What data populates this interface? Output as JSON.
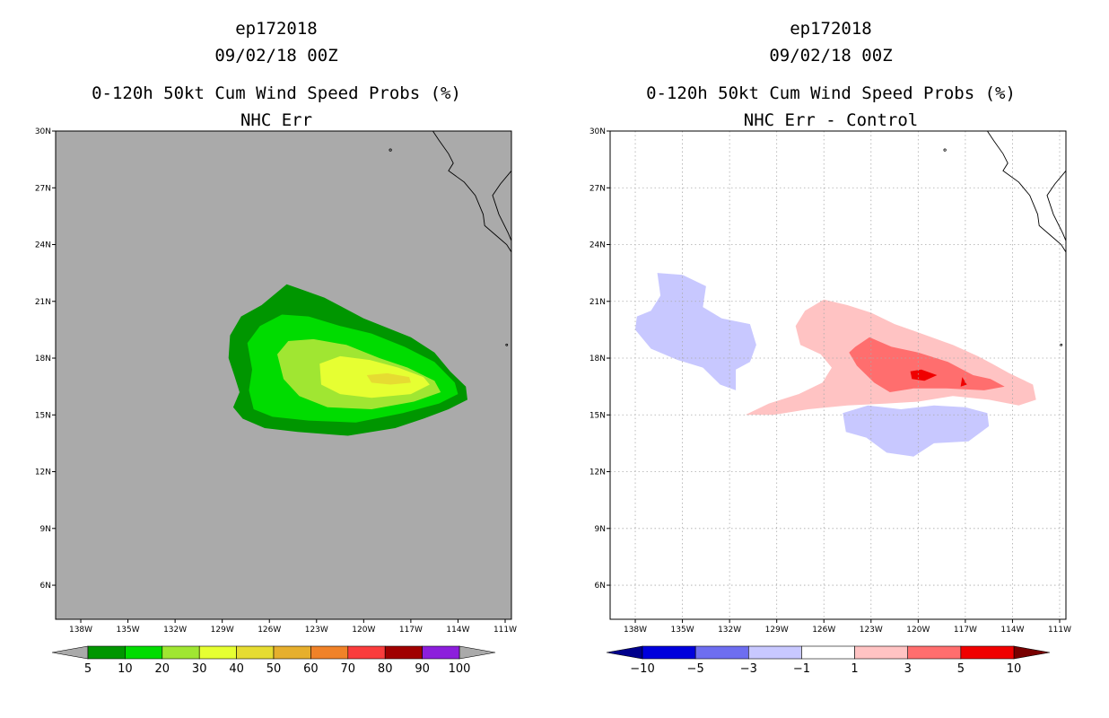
{
  "chart_data": [
    {
      "type": "heatmap",
      "title_lines": [
        "ep172018",
        "09/02/18 00Z",
        "0-120h 50kt Cum Wind Speed Probs (%)",
        "NHC Err"
      ],
      "xlabel": "",
      "ylabel": "",
      "x_ticks": [
        "138W",
        "135W",
        "132W",
        "129W",
        "126W",
        "123W",
        "120W",
        "117W",
        "114W",
        "111W"
      ],
      "y_ticks": [
        "30N",
        "27N",
        "24N",
        "21N",
        "18N",
        "15N",
        "12N",
        "9N",
        "6N"
      ],
      "xlim": [
        -139.6,
        -110.6
      ],
      "ylim": [
        4.2,
        30.0
      ],
      "grid": false,
      "background_color": "#aaaaaa",
      "colorbar": {
        "labels": [
          "5",
          "10",
          "20",
          "30",
          "40",
          "50",
          "60",
          "70",
          "80",
          "90",
          "100"
        ],
        "colors": [
          "#009600",
          "#00dc00",
          "#a0e632",
          "#e6ff32",
          "#e6dc32",
          "#e6af2d",
          "#f08228",
          "#fa3c3c",
          "#a00000",
          "#8c1edc"
        ],
        "under_color": "#aaaaaa",
        "over_color": "#aaaaaa"
      },
      "regions": [
        {
          "level": "5-10",
          "color": "#009600",
          "points": [
            [
              -128.5,
              19.2
            ],
            [
              -127.8,
              20.2
            ],
            [
              -126.5,
              20.8
            ],
            [
              -124.9,
              21.9
            ],
            [
              -124.2,
              21.7
            ],
            [
              -122.5,
              21.2
            ],
            [
              -120,
              20.1
            ],
            [
              -117,
              19.1
            ],
            [
              -115.5,
              18.3
            ],
            [
              -114.5,
              17.3
            ],
            [
              -113.5,
              16.5
            ],
            [
              -113.4,
              15.8
            ],
            [
              -114.6,
              15.3
            ],
            [
              -116.2,
              14.8
            ],
            [
              -118,
              14.3
            ],
            [
              -121,
              13.9
            ],
            [
              -124.2,
              14.1
            ],
            [
              -126.3,
              14.3
            ],
            [
              -127.7,
              14.8
            ],
            [
              -128.3,
              15.4
            ],
            [
              -127.9,
              16.2
            ],
            [
              -128.2,
              17
            ],
            [
              -128.6,
              18
            ]
          ]
        },
        {
          "level": "10-20",
          "color": "#00dc00",
          "points": [
            [
              -127.4,
              18.8
            ],
            [
              -126.6,
              19.7
            ],
            [
              -125.2,
              20.3
            ],
            [
              -123.5,
              20.2
            ],
            [
              -121.5,
              19.7
            ],
            [
              -119.5,
              19.3
            ],
            [
              -117.4,
              18.6
            ],
            [
              -115.5,
              17.8
            ],
            [
              -114.2,
              16.7
            ],
            [
              -114,
              16.1
            ],
            [
              -115.2,
              15.6
            ],
            [
              -117.5,
              15.1
            ],
            [
              -120.5,
              14.6
            ],
            [
              -123.5,
              14.7
            ],
            [
              -125.8,
              14.9
            ],
            [
              -127,
              15.3
            ],
            [
              -127.3,
              16.3
            ],
            [
              -127.1,
              17.4
            ]
          ]
        },
        {
          "level": "20-30",
          "color": "#a0e632",
          "points": [
            [
              -125.5,
              18.2
            ],
            [
              -124.8,
              18.9
            ],
            [
              -123.2,
              19
            ],
            [
              -121.1,
              18.7
            ],
            [
              -119,
              18
            ],
            [
              -117.2,
              17.5
            ],
            [
              -115.5,
              16.8
            ],
            [
              -115.1,
              16.2
            ],
            [
              -116.8,
              15.7
            ],
            [
              -119.5,
              15.3
            ],
            [
              -122.3,
              15.4
            ],
            [
              -124.1,
              16
            ],
            [
              -125.1,
              16.9
            ]
          ]
        },
        {
          "level": "30-40",
          "color": "#e6ff32",
          "points": [
            [
              -122.8,
              17.7
            ],
            [
              -121.5,
              18.1
            ],
            [
              -119.6,
              17.9
            ],
            [
              -117.8,
              17.5
            ],
            [
              -116.2,
              17
            ],
            [
              -115.8,
              16.6
            ],
            [
              -117,
              16.1
            ],
            [
              -119.5,
              15.9
            ],
            [
              -121.5,
              16.1
            ],
            [
              -122.7,
              16.6
            ]
          ]
        },
        {
          "level": "40-50",
          "color": "#e6dc32",
          "points": [
            [
              -119.8,
              17.1
            ],
            [
              -118.5,
              17.2
            ],
            [
              -117.1,
              17
            ],
            [
              -117,
              16.7
            ],
            [
              -118.3,
              16.6
            ],
            [
              -119.5,
              16.7
            ]
          ]
        }
      ],
      "coastline": true
    },
    {
      "type": "heatmap",
      "title_lines": [
        "ep172018",
        "09/02/18 00Z",
        "0-120h 50kt Cum Wind Speed Probs (%)",
        "NHC Err - Control"
      ],
      "xlabel": "",
      "ylabel": "",
      "x_ticks": [
        "138W",
        "135W",
        "132W",
        "129W",
        "126W",
        "123W",
        "120W",
        "117W",
        "114W",
        "111W"
      ],
      "y_ticks": [
        "30N",
        "27N",
        "24N",
        "21N",
        "18N",
        "15N",
        "12N",
        "9N",
        "6N"
      ],
      "xlim": [
        -139.6,
        -110.6
      ],
      "ylim": [
        4.2,
        30.0
      ],
      "grid": true,
      "background_color": "#ffffff",
      "colorbar": {
        "labels": [
          "-10",
          "-5",
          "-3",
          "-1",
          "1",
          "3",
          "5",
          "10"
        ],
        "colors": [
          "#0000dc",
          "#6e6ef0",
          "#c8c8ff",
          "#ffffff",
          "#ffc3c3",
          "#ff6e6e",
          "#f00000"
        ],
        "under_color": "#00008c",
        "over_color": "#780000"
      },
      "regions": [
        {
          "level": "-3--1",
          "color": "#c8c8ff",
          "points": [
            [
              -136.6,
              22.5
            ],
            [
              -135,
              22.4
            ],
            [
              -133.5,
              21.8
            ],
            [
              -133.7,
              20.7
            ],
            [
              -132.5,
              20.1
            ],
            [
              -130.7,
              19.8
            ],
            [
              -130.3,
              18.7
            ],
            [
              -130.7,
              17.8
            ],
            [
              -131.6,
              17.4
            ],
            [
              -131.6,
              16.3
            ],
            [
              -132.6,
              16.6
            ],
            [
              -133.7,
              17.5
            ],
            [
              -135.3,
              17.9
            ],
            [
              -137,
              18.5
            ],
            [
              -138,
              19.5
            ],
            [
              -137.9,
              20.2
            ],
            [
              -137,
              20.5
            ],
            [
              -136.4,
              21.3
            ]
          ]
        },
        {
          "level": "-3--1",
          "color": "#c8c8ff",
          "points": [
            [
              -124.8,
              15.1
            ],
            [
              -123.2,
              15.5
            ],
            [
              -121.1,
              15.3
            ],
            [
              -119,
              15.5
            ],
            [
              -117,
              15.4
            ],
            [
              -115.6,
              15.1
            ],
            [
              -115.5,
              14.4
            ],
            [
              -116.8,
              13.6
            ],
            [
              -119,
              13.5
            ],
            [
              -120.3,
              12.8
            ],
            [
              -122,
              13
            ],
            [
              -123.3,
              13.8
            ],
            [
              -124.6,
              14.1
            ]
          ]
        },
        {
          "level": "1-3",
          "color": "#ffc3c3",
          "points": [
            [
              -127.2,
              20.5
            ],
            [
              -126,
              21.1
            ],
            [
              -124.5,
              20.8
            ],
            [
              -123,
              20.4
            ],
            [
              -121.5,
              19.8
            ],
            [
              -119.8,
              19.3
            ],
            [
              -117.8,
              18.7
            ],
            [
              -116.2,
              18.1
            ],
            [
              -115.3,
              17.7
            ],
            [
              -114.2,
              17.2
            ],
            [
              -112.7,
              16.6
            ],
            [
              -112.5,
              15.8
            ],
            [
              -113.6,
              15.5
            ],
            [
              -115.5,
              15.8
            ],
            [
              -117.8,
              16
            ],
            [
              -120,
              15.7
            ],
            [
              -122,
              15.6
            ],
            [
              -124.5,
              15.5
            ],
            [
              -127,
              15.3
            ],
            [
              -129.2,
              15
            ],
            [
              -131,
              15
            ],
            [
              -129.5,
              15.6
            ],
            [
              -127.6,
              16.1
            ],
            [
              -126.1,
              16.7
            ],
            [
              -125.5,
              17.5
            ],
            [
              -126.2,
              18.2
            ],
            [
              -127.5,
              18.7
            ],
            [
              -127.8,
              19.7
            ]
          ]
        },
        {
          "level": "3-5",
          "color": "#ff6e6e",
          "points": [
            [
              -124,
              18.6
            ],
            [
              -123.1,
              19.1
            ],
            [
              -121.7,
              18.6
            ],
            [
              -120,
              18.3
            ],
            [
              -118.1,
              17.8
            ],
            [
              -116.5,
              17.1
            ],
            [
              -115.4,
              16.9
            ],
            [
              -114.5,
              16.5
            ],
            [
              -115.8,
              16.3
            ],
            [
              -118.2,
              16.4
            ],
            [
              -120.3,
              16.4
            ],
            [
              -121.8,
              16.2
            ],
            [
              -122.8,
              16.7
            ],
            [
              -123.9,
              17.6
            ],
            [
              -124.4,
              18.3
            ]
          ]
        },
        {
          "level": "5-10",
          "color": "#f00000",
          "points": [
            [
              -120.5,
              17.3
            ],
            [
              -119.8,
              17.4
            ],
            [
              -118.8,
              17.1
            ],
            [
              -119.6,
              16.8
            ],
            [
              -120.4,
              16.9
            ]
          ]
        },
        {
          "level": "5-10",
          "color": "#f00000",
          "points": [
            [
              -117.2,
              17
            ],
            [
              -116.9,
              16.6
            ],
            [
              -117.3,
              16.5
            ]
          ]
        }
      ],
      "coastline": true
    }
  ]
}
